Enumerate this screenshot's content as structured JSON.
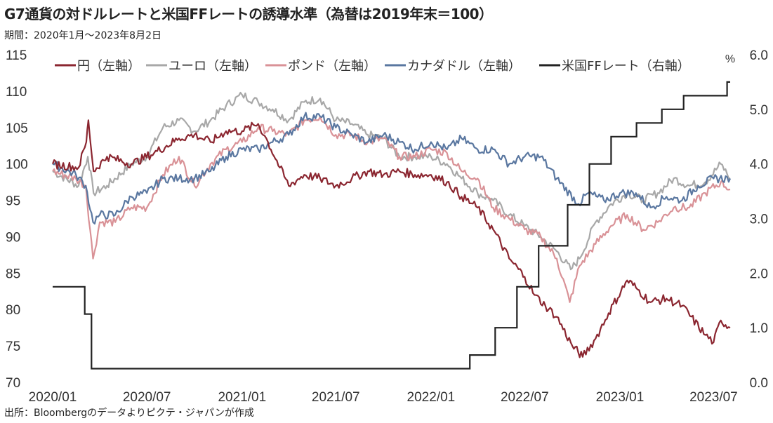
{
  "title": "G7通貨の対ドルレートと米国FFレートの誘導水準（為替は2019年末＝100）",
  "period": "期間：2020年1月～2023年8月2日",
  "source": "出所：Bloombergのデータよりピクテ・ジャパンが作成",
  "chart_data": {
    "type": "line",
    "title": "G7通貨の対ドルレートと米国FFレートの誘導水準（為替は2019年末＝100）",
    "x_ticks": [
      "2020/01",
      "2020/07",
      "2021/01",
      "2021/07",
      "2022/01",
      "2022/07",
      "2023/01",
      "2023/07"
    ],
    "x_range": [
      "2020-01-01",
      "2023-08-02"
    ],
    "y_left": {
      "range": [
        70,
        115
      ],
      "ticks": [
        "70",
        "75",
        "80",
        "85",
        "90",
        "95",
        "100",
        "105",
        "110",
        "115"
      ]
    },
    "y_right": {
      "range": [
        0,
        6
      ],
      "unit_label": "%",
      "ticks": [
        "0.0",
        "1.0",
        "2.0",
        "3.0",
        "4.0",
        "5.0",
        "6.0"
      ]
    },
    "grid": false,
    "legend_position": "top",
    "series": [
      {
        "name": "円（左軸）",
        "axis": "left",
        "color": "#8b2630",
        "points": [
          [
            "2020-01-01",
            100
          ],
          [
            "2020-02-20",
            99.5
          ],
          [
            "2020-03-06",
            103
          ],
          [
            "2020-03-10",
            106
          ],
          [
            "2020-03-20",
            99
          ],
          [
            "2020-04-15",
            101
          ],
          [
            "2020-06-01",
            100
          ],
          [
            "2020-07-15",
            101.5
          ],
          [
            "2020-09-01",
            103.5
          ],
          [
            "2020-10-01",
            104
          ],
          [
            "2020-11-01",
            103
          ],
          [
            "2020-12-01",
            104.5
          ],
          [
            "2021-01-01",
            104.5
          ],
          [
            "2021-02-01",
            105.5
          ],
          [
            "2021-02-20",
            103
          ],
          [
            "2021-03-15",
            99.5
          ],
          [
            "2021-04-01",
            97
          ],
          [
            "2021-05-01",
            98.5
          ],
          [
            "2021-06-01",
            98
          ],
          [
            "2021-07-01",
            97
          ],
          [
            "2021-08-01",
            98
          ],
          [
            "2021-09-01",
            99
          ],
          [
            "2021-10-01",
            98.5
          ],
          [
            "2021-11-01",
            99
          ],
          [
            "2021-12-01",
            98.5
          ],
          [
            "2022-01-01",
            98.5
          ],
          [
            "2022-02-01",
            97.5
          ],
          [
            "2022-03-01",
            95.5
          ],
          [
            "2022-04-01",
            94
          ],
          [
            "2022-05-01",
            91
          ],
          [
            "2022-06-01",
            87
          ],
          [
            "2022-07-01",
            84.5
          ],
          [
            "2022-07-20",
            82
          ],
          [
            "2022-08-10",
            80.5
          ],
          [
            "2022-09-01",
            79
          ],
          [
            "2022-10-01",
            75
          ],
          [
            "2022-10-21",
            73.5
          ],
          [
            "2022-11-15",
            76
          ],
          [
            "2022-12-10",
            79.5
          ],
          [
            "2023-01-15",
            84
          ],
          [
            "2023-02-01",
            83
          ],
          [
            "2023-03-01",
            81
          ],
          [
            "2023-04-01",
            81.5
          ],
          [
            "2023-05-01",
            80.5
          ],
          [
            "2023-06-15",
            76.5
          ],
          [
            "2023-07-01",
            75.5
          ],
          [
            "2023-07-15",
            78.5
          ],
          [
            "2023-08-02",
            77.5
          ]
        ]
      },
      {
        "name": "ユーロ（左軸）",
        "axis": "left",
        "color": "#a8a8a8",
        "points": [
          [
            "2020-01-01",
            99
          ],
          [
            "2020-02-20",
            97
          ],
          [
            "2020-03-09",
            101
          ],
          [
            "2020-03-20",
            96
          ],
          [
            "2020-04-15",
            97
          ],
          [
            "2020-06-01",
            100
          ],
          [
            "2020-07-01",
            101
          ],
          [
            "2020-08-01",
            105
          ],
          [
            "2020-09-01",
            106
          ],
          [
            "2020-10-01",
            104.5
          ],
          [
            "2020-11-01",
            106
          ],
          [
            "2020-12-01",
            108
          ],
          [
            "2021-01-01",
            109.5
          ],
          [
            "2021-02-01",
            108.5
          ],
          [
            "2021-03-01",
            107.5
          ],
          [
            "2021-04-01",
            106
          ],
          [
            "2021-05-01",
            108.5
          ],
          [
            "2021-06-01",
            109
          ],
          [
            "2021-07-01",
            106
          ],
          [
            "2021-08-01",
            105.5
          ],
          [
            "2021-09-01",
            104
          ],
          [
            "2021-10-01",
            103.5
          ],
          [
            "2021-11-01",
            101
          ],
          [
            "2021-12-01",
            101
          ],
          [
            "2022-01-01",
            101
          ],
          [
            "2022-02-01",
            100
          ],
          [
            "2022-03-01",
            98
          ],
          [
            "2022-04-01",
            96
          ],
          [
            "2022-05-01",
            95
          ],
          [
            "2022-06-01",
            93
          ],
          [
            "2022-07-01",
            91.5
          ],
          [
            "2022-08-01",
            90
          ],
          [
            "2022-09-01",
            88
          ],
          [
            "2022-09-28",
            85.5
          ],
          [
            "2022-10-15",
            87
          ],
          [
            "2022-11-15",
            92
          ],
          [
            "2022-12-15",
            94.5
          ],
          [
            "2023-01-15",
            96
          ],
          [
            "2023-02-15",
            95
          ],
          [
            "2023-03-15",
            96
          ],
          [
            "2023-04-15",
            98
          ],
          [
            "2023-05-15",
            97
          ],
          [
            "2023-06-15",
            97.5
          ],
          [
            "2023-07-15",
            100
          ],
          [
            "2023-08-02",
            98
          ]
        ]
      },
      {
        "name": "ポンド（左軸）",
        "axis": "left",
        "color": "#d99297",
        "points": [
          [
            "2020-01-01",
            99
          ],
          [
            "2020-02-15",
            98
          ],
          [
            "2020-03-05",
            97
          ],
          [
            "2020-03-19",
            87
          ],
          [
            "2020-04-01",
            92
          ],
          [
            "2020-05-01",
            92
          ],
          [
            "2020-06-01",
            94
          ],
          [
            "2020-07-01",
            94
          ],
          [
            "2020-08-01",
            98.5
          ],
          [
            "2020-09-01",
            101
          ],
          [
            "2020-10-01",
            97
          ],
          [
            "2020-11-01",
            100
          ],
          [
            "2020-12-01",
            102
          ],
          [
            "2021-01-01",
            103
          ],
          [
            "2021-02-01",
            105
          ],
          [
            "2021-03-01",
            104.5
          ],
          [
            "2021-04-01",
            104
          ],
          [
            "2021-05-01",
            106
          ],
          [
            "2021-06-01",
            106.5
          ],
          [
            "2021-07-01",
            104
          ],
          [
            "2021-08-01",
            104
          ],
          [
            "2021-09-01",
            103
          ],
          [
            "2021-10-01",
            103.5
          ],
          [
            "2021-11-01",
            101
          ],
          [
            "2021-12-01",
            101
          ],
          [
            "2022-01-01",
            102
          ],
          [
            "2022-02-01",
            101.5
          ],
          [
            "2022-03-01",
            99
          ],
          [
            "2022-04-01",
            98
          ],
          [
            "2022-05-01",
            94
          ],
          [
            "2022-06-01",
            92.5
          ],
          [
            "2022-07-01",
            91
          ],
          [
            "2022-08-01",
            90
          ],
          [
            "2022-09-01",
            87
          ],
          [
            "2022-09-26",
            81
          ],
          [
            "2022-10-15",
            86
          ],
          [
            "2022-11-15",
            89
          ],
          [
            "2022-12-15",
            91.5
          ],
          [
            "2023-01-15",
            93
          ],
          [
            "2023-02-15",
            91
          ],
          [
            "2023-03-15",
            92
          ],
          [
            "2023-04-15",
            94
          ],
          [
            "2023-05-15",
            94
          ],
          [
            "2023-06-15",
            96
          ],
          [
            "2023-07-15",
            97.5
          ],
          [
            "2023-08-02",
            96.5
          ]
        ]
      },
      {
        "name": "カナダドル（左軸）",
        "axis": "left",
        "color": "#5a77a0",
        "points": [
          [
            "2020-01-01",
            100
          ],
          [
            "2020-02-15",
            98.5
          ],
          [
            "2020-03-05",
            97
          ],
          [
            "2020-03-19",
            92
          ],
          [
            "2020-04-01",
            93
          ],
          [
            "2020-05-01",
            93
          ],
          [
            "2020-06-01",
            95.5
          ],
          [
            "2020-07-01",
            96
          ],
          [
            "2020-08-01",
            98
          ],
          [
            "2020-09-01",
            98
          ],
          [
            "2020-10-01",
            98
          ],
          [
            "2020-11-01",
            99
          ],
          [
            "2020-12-01",
            101
          ],
          [
            "2021-01-01",
            102
          ],
          [
            "2021-02-01",
            102
          ],
          [
            "2021-03-01",
            103
          ],
          [
            "2021-04-01",
            104
          ],
          [
            "2021-05-01",
            106.5
          ],
          [
            "2021-06-01",
            106.5
          ],
          [
            "2021-07-01",
            105
          ],
          [
            "2021-08-01",
            104
          ],
          [
            "2021-09-01",
            103
          ],
          [
            "2021-10-01",
            104
          ],
          [
            "2021-11-01",
            103
          ],
          [
            "2021-12-01",
            102
          ],
          [
            "2022-01-01",
            103
          ],
          [
            "2022-02-01",
            102
          ],
          [
            "2022-03-01",
            103.5
          ],
          [
            "2022-04-01",
            102
          ],
          [
            "2022-05-01",
            102
          ],
          [
            "2022-06-01",
            100
          ],
          [
            "2022-07-01",
            101
          ],
          [
            "2022-08-01",
            101
          ],
          [
            "2022-09-01",
            98
          ],
          [
            "2022-10-13",
            94.5
          ],
          [
            "2022-11-01",
            96
          ],
          [
            "2022-12-01",
            95
          ],
          [
            "2023-01-01",
            96
          ],
          [
            "2023-02-01",
            96
          ],
          [
            "2023-03-01",
            94
          ],
          [
            "2023-04-01",
            95.5
          ],
          [
            "2023-05-01",
            95
          ],
          [
            "2023-06-01",
            97
          ],
          [
            "2023-07-01",
            98
          ],
          [
            "2023-08-02",
            98
          ]
        ]
      },
      {
        "name": "米国FFレート（右軸）",
        "axis": "right",
        "color": "#222222",
        "steps": [
          [
            "2020-01-01",
            1.75
          ],
          [
            "2020-03-03",
            1.25
          ],
          [
            "2020-03-16",
            0.25
          ],
          [
            "2022-03-17",
            0.5
          ],
          [
            "2022-05-05",
            1.0
          ],
          [
            "2022-06-16",
            1.75
          ],
          [
            "2022-07-28",
            2.5
          ],
          [
            "2022-09-22",
            3.25
          ],
          [
            "2022-11-03",
            4.0
          ],
          [
            "2022-12-15",
            4.5
          ],
          [
            "2023-02-02",
            4.75
          ],
          [
            "2023-03-23",
            5.0
          ],
          [
            "2023-05-04",
            5.25
          ],
          [
            "2023-07-27",
            5.5
          ],
          [
            "2023-08-02",
            5.5
          ]
        ]
      }
    ]
  }
}
